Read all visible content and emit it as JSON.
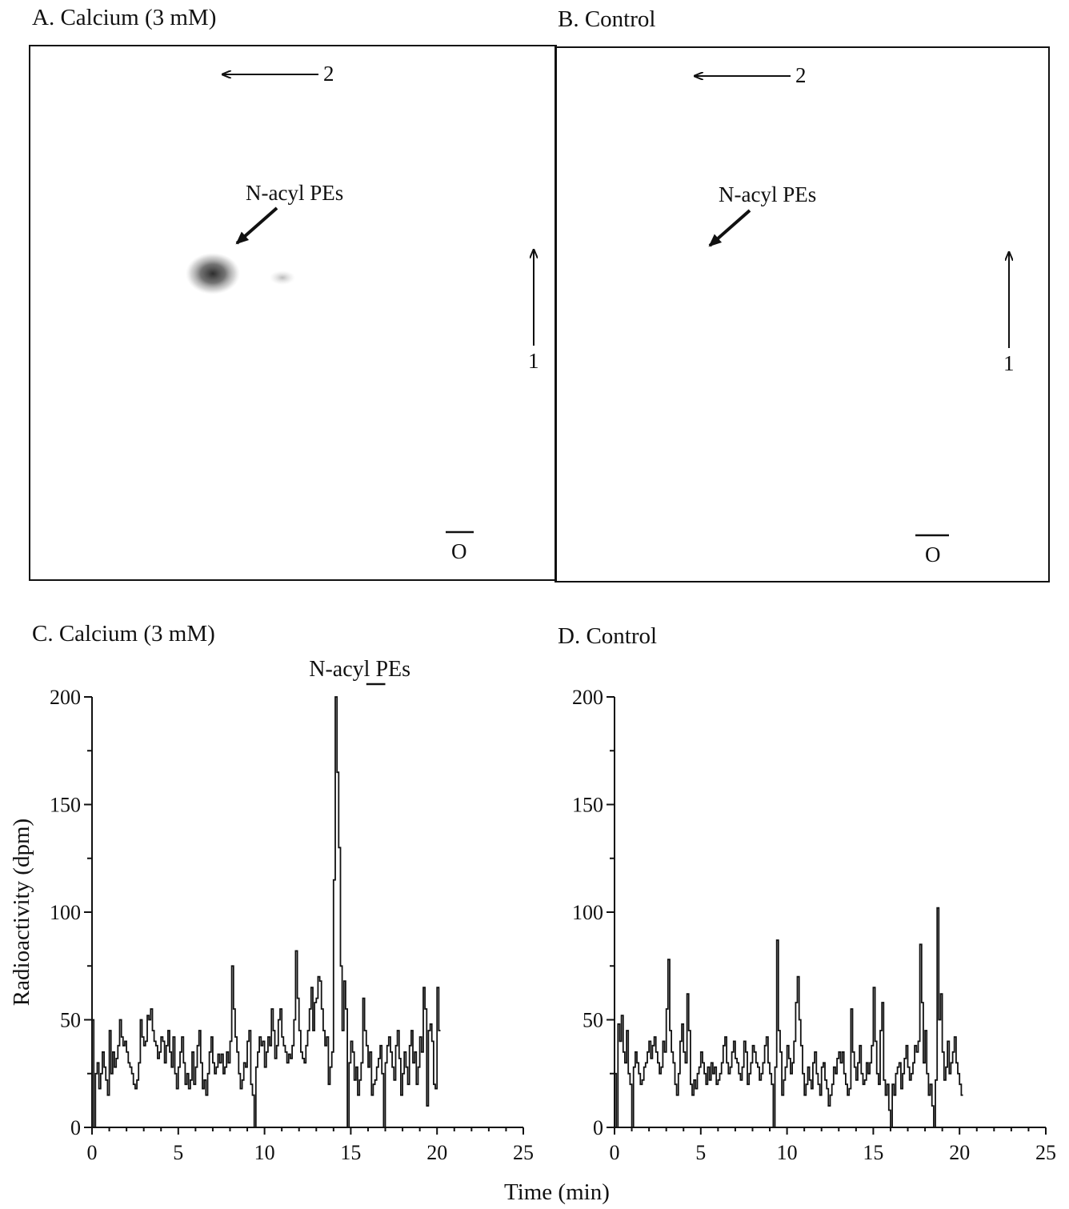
{
  "panels": {
    "a": {
      "title": "A. Calcium (3 mM)"
    },
    "b": {
      "title": "B. Control"
    },
    "c": {
      "title": "C. Calcium (3 mM)"
    },
    "d": {
      "title": "D. Control"
    }
  },
  "tlc": {
    "a": {
      "dir1": "1",
      "dir2": "2",
      "origin": "O",
      "spot_label": "N-acyl PEs"
    },
    "b": {
      "dir1": "1",
      "dir2": "2",
      "origin": "O",
      "spot_label": "N-acyl PEs"
    }
  },
  "shared_xlabel": "Time (min)",
  "chart_data": [
    {
      "id": "C",
      "type": "line",
      "title": "C. Calcium (3 mM)",
      "xlabel": "Time (min)",
      "ylabel": "Radioactivity (dpm)",
      "xlim": [
        0,
        25
      ],
      "ylim": [
        0,
        200
      ],
      "xticks": [
        0,
        5,
        10,
        15,
        20,
        25
      ],
      "yticks": [
        0,
        50,
        100,
        150,
        200
      ],
      "annotation": {
        "text": "N-acyl PEs",
        "x_range": [
          15.9,
          17.0
        ]
      },
      "series": [
        {
          "step": 0.1,
          "values": [
            50,
            0,
            25,
            30,
            18,
            25,
            35,
            28,
            22,
            15,
            45,
            25,
            35,
            28,
            32,
            38,
            50,
            42,
            38,
            40,
            35,
            30,
            28,
            25,
            20,
            18,
            22,
            30,
            50,
            42,
            38,
            40,
            52,
            50,
            55,
            45,
            40,
            38,
            32,
            35,
            42,
            40,
            30,
            38,
            45,
            35,
            28,
            42,
            25,
            18,
            28,
            35,
            42,
            30,
            20,
            25,
            18,
            22,
            35,
            20,
            28,
            38,
            45,
            30,
            18,
            22,
            15,
            25,
            35,
            42,
            30,
            25,
            28,
            34,
            30,
            34,
            25,
            28,
            35,
            30,
            40,
            75,
            55,
            42,
            35,
            25,
            18,
            22,
            30,
            28,
            40,
            45,
            20,
            15,
            0,
            28,
            35,
            42,
            38,
            40,
            28,
            35,
            42,
            38,
            55,
            45,
            32,
            38,
            50,
            55,
            42,
            38,
            35,
            30,
            34,
            32,
            38,
            50,
            82,
            60,
            45,
            35,
            32,
            30,
            38,
            45,
            55,
            65,
            45,
            58,
            60,
            70,
            68,
            55,
            45,
            38,
            42,
            20,
            28,
            35,
            115,
            200,
            165,
            130,
            75,
            45,
            68,
            55,
            0,
            30,
            40,
            35,
            22,
            28,
            15,
            22,
            30,
            60,
            45,
            38,
            28,
            35,
            15,
            20,
            22,
            28,
            32,
            38,
            25,
            0,
            30,
            38,
            42,
            35,
            28,
            22,
            38,
            45,
            32,
            15,
            25,
            35,
            28,
            20,
            38,
            45,
            30,
            35,
            20,
            28,
            42,
            35,
            65,
            55,
            10,
            45,
            48,
            40,
            20,
            18,
            65,
            45
          ]
        }
      ]
    },
    {
      "id": "D",
      "type": "line",
      "title": "D. Control",
      "xlabel": "Time (min)",
      "ylabel": "",
      "xlim": [
        0,
        25
      ],
      "ylim": [
        0,
        200
      ],
      "xticks": [
        0,
        5,
        10,
        15,
        20,
        25
      ],
      "yticks": [
        0,
        50,
        100,
        150,
        200
      ],
      "series": [
        {
          "step": 0.1,
          "values": [
            25,
            0,
            48,
            40,
            52,
            35,
            30,
            45,
            25,
            20,
            0,
            28,
            35,
            30,
            25,
            20,
            22,
            28,
            30,
            35,
            40,
            32,
            38,
            42,
            35,
            30,
            25,
            28,
            40,
            35,
            55,
            78,
            45,
            35,
            30,
            20,
            15,
            25,
            40,
            48,
            35,
            30,
            62,
            45,
            20,
            15,
            22,
            18,
            25,
            28,
            35,
            30,
            25,
            20,
            28,
            22,
            30,
            25,
            28,
            20,
            22,
            25,
            30,
            38,
            42,
            30,
            25,
            28,
            35,
            40,
            32,
            30,
            25,
            22,
            28,
            40,
            35,
            20,
            25,
            30,
            38,
            35,
            30,
            28,
            22,
            25,
            30,
            38,
            42,
            30,
            25,
            20,
            0,
            28,
            87,
            45,
            35,
            15,
            22,
            28,
            38,
            32,
            25,
            30,
            40,
            58,
            70,
            50,
            38,
            25,
            15,
            20,
            28,
            22,
            18,
            30,
            35,
            25,
            20,
            15,
            28,
            30,
            22,
            18,
            10,
            15,
            20,
            28,
            25,
            32,
            35,
            30,
            35,
            25,
            20,
            15,
            18,
            55,
            35,
            28,
            22,
            30,
            38,
            25,
            20,
            22,
            30,
            25,
            30,
            38,
            65,
            40,
            25,
            20,
            45,
            58,
            22,
            15,
            20,
            8,
            0,
            20,
            15,
            25,
            28,
            30,
            18,
            25,
            32,
            38,
            28,
            22,
            25,
            30,
            38,
            35,
            40,
            85,
            58,
            30,
            45,
            25,
            15,
            20,
            10,
            0,
            22,
            102,
            50,
            62,
            35,
            22,
            28,
            40,
            25,
            30,
            35,
            42,
            30,
            25,
            20,
            15
          ]
        }
      ]
    }
  ]
}
